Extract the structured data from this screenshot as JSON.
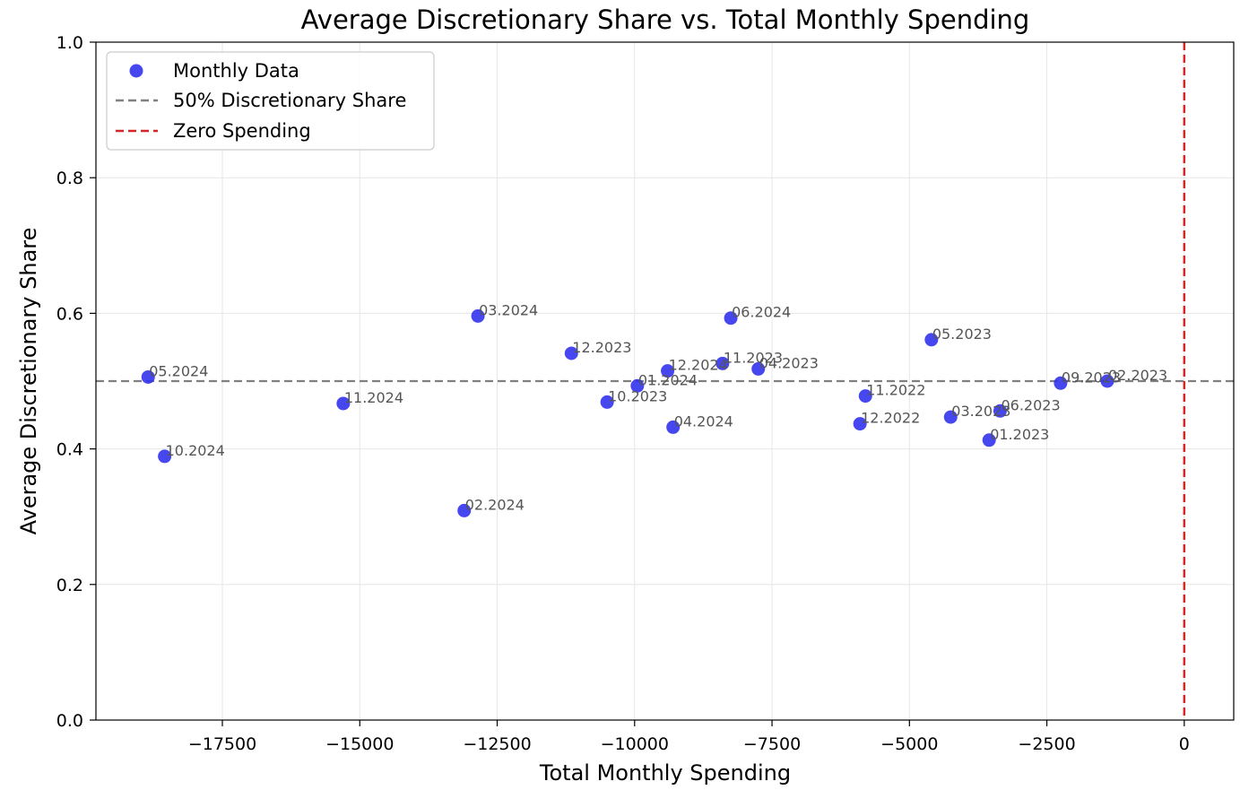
{
  "chart_data": {
    "type": "scatter",
    "title": "Average Discretionary Share vs. Total Monthly Spending",
    "xlabel": "Total Monthly Spending",
    "ylabel": "Average Discretionary Share",
    "xlim": [
      -19800,
      900
    ],
    "ylim": [
      0,
      1.0
    ],
    "x_ticks": [
      -17500,
      -15000,
      -12500,
      -10000,
      -7500,
      -5000,
      -2500,
      0
    ],
    "x_tick_labels": [
      "−17500",
      "−15000",
      "−12500",
      "−10000",
      "−7500",
      "−5000",
      "−2500",
      "0"
    ],
    "y_ticks": [
      0,
      0.2,
      0.4,
      0.6,
      0.8,
      1.0
    ],
    "y_tick_labels": [
      "0.0",
      "0.2",
      "0.4",
      "0.6",
      "0.8",
      "1.0"
    ],
    "grid": true,
    "legend_position": "upper-left",
    "colors": {
      "points": "#3333ee",
      "reference_line": "#808080",
      "zero_line": "#d62728",
      "grid": "#e6e6e6",
      "label": "#555555"
    },
    "series": [
      {
        "name": "Monthly Data",
        "points": [
          {
            "x": -18850,
            "y": 0.506,
            "label": "05.2024"
          },
          {
            "x": -18550,
            "y": 0.389,
            "label": "10.2024"
          },
          {
            "x": -15300,
            "y": 0.467,
            "label": "11.2024"
          },
          {
            "x": -13100,
            "y": 0.309,
            "label": "02.2024"
          },
          {
            "x": -12850,
            "y": 0.596,
            "label": "03.2024"
          },
          {
            "x": -11150,
            "y": 0.541,
            "label": "12.2023"
          },
          {
            "x": -10500,
            "y": 0.469,
            "label": "10.2023"
          },
          {
            "x": -9950,
            "y": 0.493,
            "label": "01.2024"
          },
          {
            "x": -9400,
            "y": 0.515,
            "label": "12.2024"
          },
          {
            "x": -9300,
            "y": 0.432,
            "label": "04.2024"
          },
          {
            "x": -8400,
            "y": 0.526,
            "label": "11.2023"
          },
          {
            "x": -8250,
            "y": 0.593,
            "label": "06.2024"
          },
          {
            "x": -7750,
            "y": 0.518,
            "label": "04.2023"
          },
          {
            "x": -5900,
            "y": 0.437,
            "label": "12.2022"
          },
          {
            "x": -5800,
            "y": 0.478,
            "label": "11.2022"
          },
          {
            "x": -4600,
            "y": 0.561,
            "label": "05.2023"
          },
          {
            "x": -4250,
            "y": 0.447,
            "label": "03.2023"
          },
          {
            "x": -3550,
            "y": 0.413,
            "label": "01.2023"
          },
          {
            "x": -3350,
            "y": 0.456,
            "label": "06.2023"
          },
          {
            "x": -2250,
            "y": 0.497,
            "label": "09.2023"
          },
          {
            "x": -1400,
            "y": 0.5,
            "label": "02.2023"
          }
        ]
      }
    ],
    "reference_lines": [
      {
        "name": "50% Discretionary Share",
        "orientation": "horizontal",
        "value": 0.5,
        "style": "dashed"
      },
      {
        "name": "Zero Spending",
        "orientation": "vertical",
        "value": 0,
        "style": "dashed"
      }
    ]
  }
}
